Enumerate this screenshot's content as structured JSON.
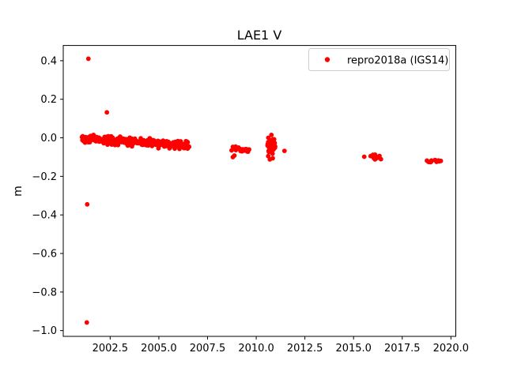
{
  "chart_data": {
    "type": "scatter",
    "title": "LAE1 V",
    "xlabel": "",
    "ylabel": "m",
    "grid": false,
    "background": "#ffffff",
    "spine_color": "#000000",
    "marker_color": "#ff0000",
    "xlim": [
      2000.09,
      2020.25
    ],
    "ylim": [
      -1.03,
      0.479
    ],
    "xticks": {
      "values": [
        2002.5,
        2005.0,
        2007.5,
        2010.0,
        2012.5,
        2015.0,
        2017.5,
        2020.0
      ],
      "labels": [
        "2002.5",
        "2005.0",
        "2007.5",
        "2010.0",
        "2012.5",
        "2015.0",
        "2017.5",
        "2020.0"
      ]
    },
    "yticks": {
      "values": [
        0.4,
        0.2,
        0.0,
        -0.2,
        -0.4,
        -0.6,
        -0.8,
        -1.0
      ],
      "labels": [
        "0.4",
        "0.2",
        "0.0",
        "−0.2",
        "−0.4",
        "−0.6",
        "−0.8",
        "−1.0"
      ]
    },
    "legend": {
      "label": "repro2018a (IGS14)",
      "position": "upper-right",
      "marker": "red-dot",
      "marker_color": "#ff0000",
      "edge_color": "#cccccc"
    },
    "series": [
      {
        "name": "repro2018a (IGS14)",
        "color": "#ff0000",
        "marker_size_px": 2.9,
        "clusters": [
          {
            "x_start": 2001.05,
            "x_end": 2006.55,
            "n": 270,
            "y_start": -0.004,
            "y_end": -0.04,
            "jitter": 0.013
          },
          {
            "x_start": 2008.74,
            "x_end": 2009.62,
            "n": 20,
            "y_start": -0.055,
            "y_end": -0.066,
            "jitter": 0.008
          },
          {
            "x_start": 2010.58,
            "x_end": 2010.97,
            "n": 34,
            "y_start": -0.04,
            "y_end": -0.05,
            "jitter": 0.03
          },
          {
            "x_start": 2015.9,
            "x_end": 2016.42,
            "n": 8,
            "y_start": -0.098,
            "y_end": -0.104,
            "jitter": 0.007
          },
          {
            "x_start": 2018.78,
            "x_end": 2019.0,
            "n": 5,
            "y_start": -0.127,
            "y_end": -0.124,
            "jitter": 0.005
          },
          {
            "x_start": 2019.2,
            "x_end": 2019.47,
            "n": 6,
            "y_start": -0.12,
            "y_end": -0.117,
            "jitter": 0.005
          }
        ],
        "outlier_points": [
          [
            2001.38,
            0.41
          ],
          [
            2002.33,
            0.132
          ],
          [
            2001.32,
            -0.345
          ],
          [
            2001.3,
            -0.958
          ],
          [
            2008.88,
            -0.092
          ],
          [
            2008.8,
            -0.1
          ],
          [
            2010.78,
            0.015
          ],
          [
            2010.7,
            -0.112
          ],
          [
            2010.85,
            -0.106
          ],
          [
            2010.62,
            -0.095
          ],
          [
            2011.45,
            -0.068
          ],
          [
            2015.55,
            -0.098
          ],
          [
            2016.0,
            -0.088
          ],
          [
            2016.1,
            -0.112
          ],
          [
            2019.0,
            -0.118
          ]
        ]
      }
    ]
  }
}
